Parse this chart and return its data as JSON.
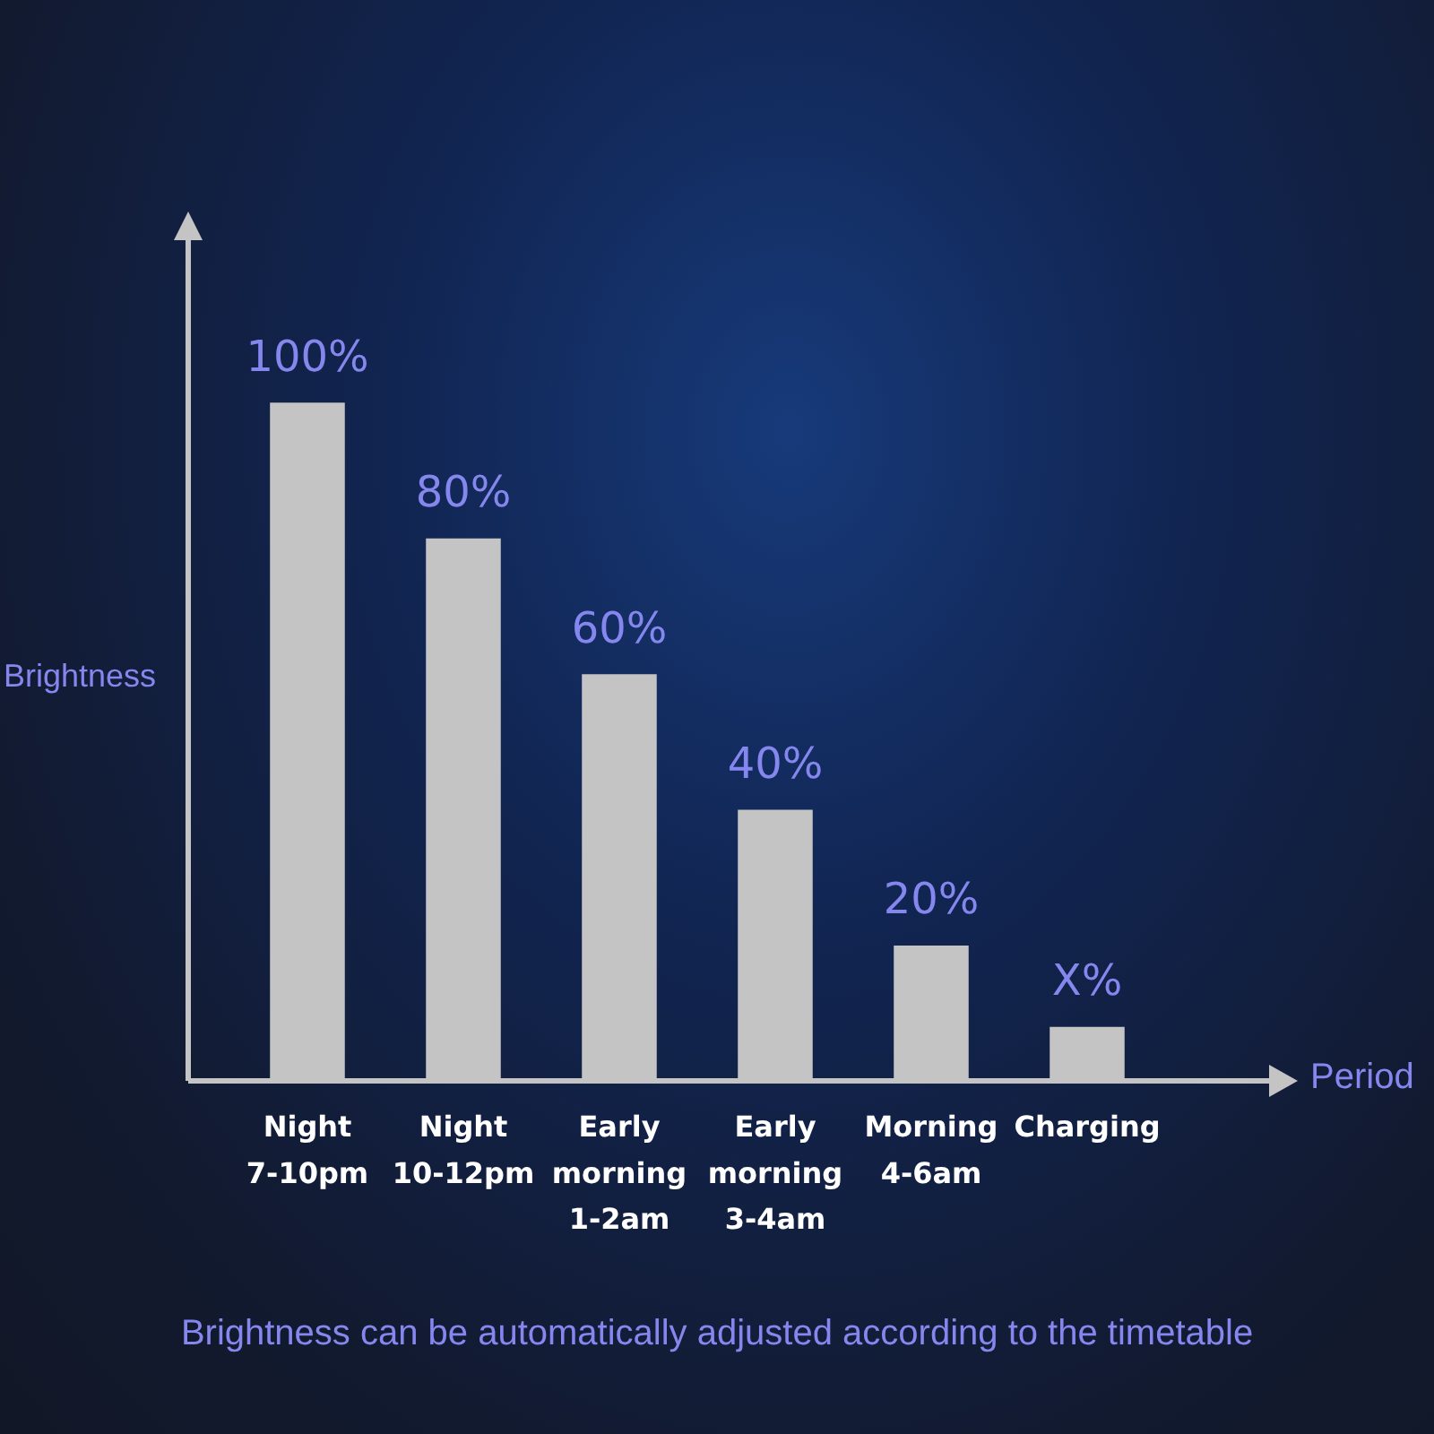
{
  "chart_data": {
    "type": "bar",
    "ylim": [
      0,
      125
    ],
    "tick_labels": "x",
    "xlabel": "Period",
    "ylabel": "Brightness",
    "categories": [
      "Night\n7-10pm",
      "Night\n10-12pm",
      "Early\nmorning\n1-2am",
      "Early\nmorning\n3-4am",
      "Morning\n4-6am",
      "Charging"
    ],
    "values": [
      100,
      80,
      60,
      40,
      20,
      8
    ],
    "value_labels": [
      "100%",
      "80%",
      "60%",
      "40%",
      "20%",
      "X%"
    ],
    "color": "#c4c4c4",
    "annotations": [
      "Brightness can be automatically adjusted according to the timetable"
    ]
  }
}
